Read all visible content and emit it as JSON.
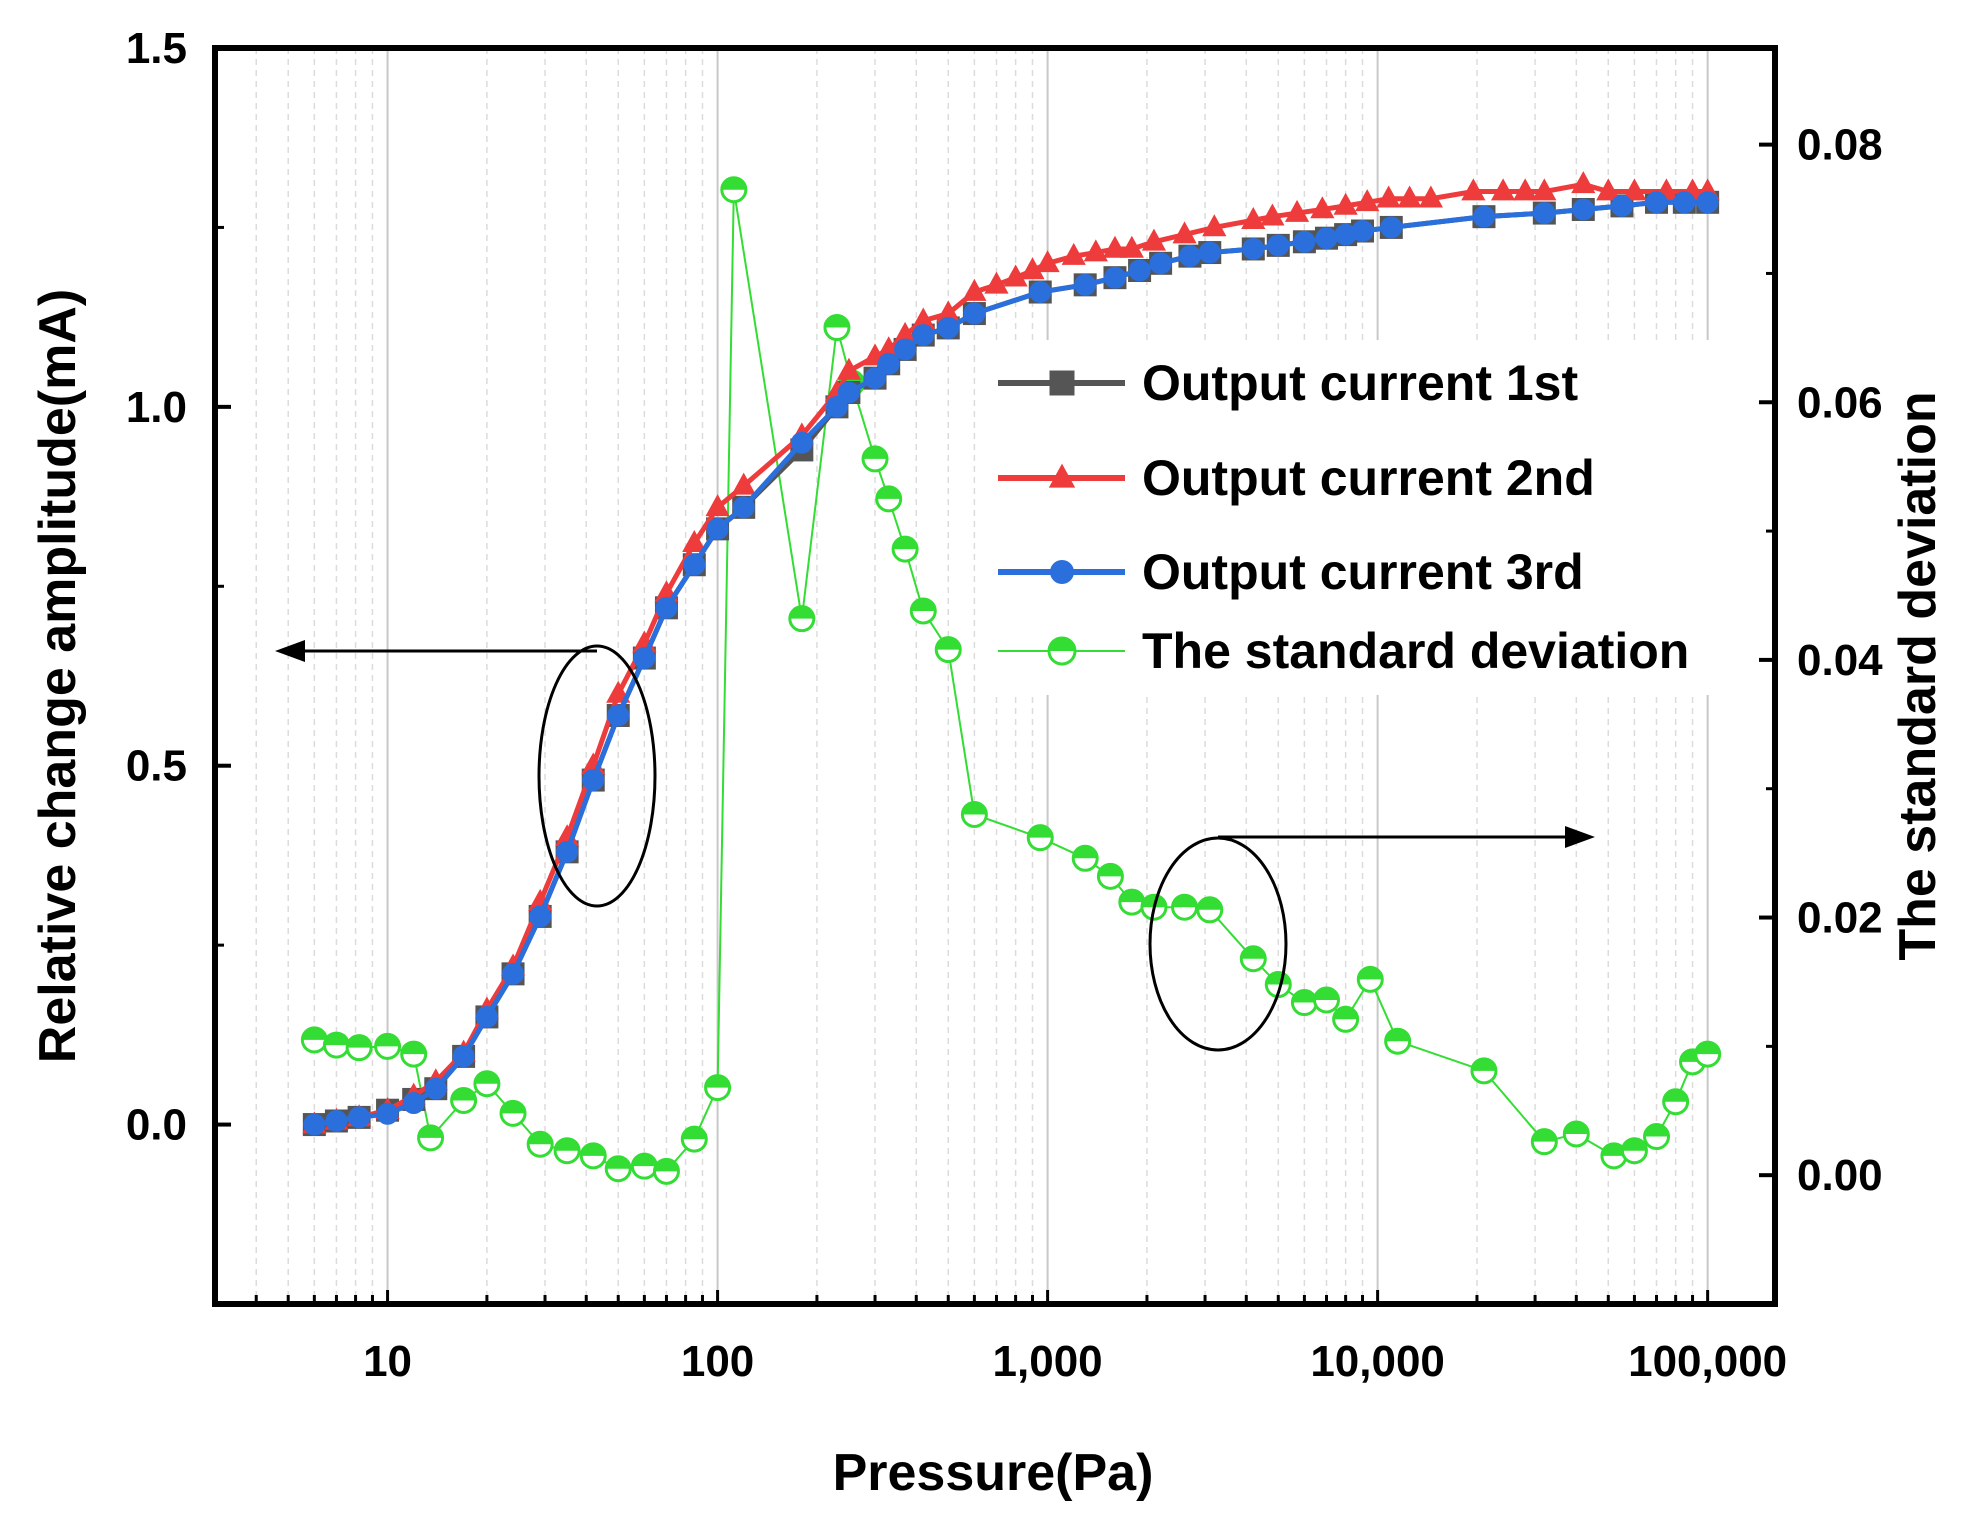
{
  "chart_data": {
    "type": "line",
    "title": "",
    "xlabel": "Pressure(Pa)",
    "ylabel": "Relative change amplitude(mA)",
    "y2label": "The standard deviation",
    "xscale": "log",
    "xlim": [
      3,
      160000
    ],
    "ylim": [
      -0.25,
      1.5
    ],
    "y2lim": [
      -0.01,
      0.0875
    ],
    "x_ticks": [
      10,
      100,
      1000,
      10000,
      100000
    ],
    "x_tick_labels": [
      "10",
      "100",
      "1,000",
      "10,000",
      "100,000"
    ],
    "y_ticks": [
      0.0,
      0.5,
      1.0,
      1.5
    ],
    "y_tick_labels": [
      "0.0",
      "0.5",
      "1.0",
      "1.5"
    ],
    "y2_ticks": [
      0.0,
      0.02,
      0.04,
      0.06,
      0.08
    ],
    "y2_tick_labels": [
      "0.00",
      "0.02",
      "0.04",
      "0.06",
      "0.08"
    ],
    "grid": true,
    "legend_position": "center-right",
    "series": [
      {
        "name": "Output current 1st",
        "axis": "left",
        "color": "#555555",
        "marker": "square",
        "x": [
          6,
          7,
          8.2,
          10,
          12,
          14,
          17,
          20,
          24,
          29,
          35,
          42,
          50,
          60,
          70,
          85,
          100,
          120,
          180,
          230,
          250,
          300,
          330,
          370,
          420,
          500,
          600,
          950,
          1300,
          1600,
          1900,
          2200,
          2700,
          3100,
          4200,
          5000,
          6000,
          7000,
          8000,
          9000,
          11000,
          21000,
          32000,
          42000,
          55000,
          70000,
          85000,
          100000
        ],
        "values": [
          0.0,
          0.005,
          0.01,
          0.02,
          0.035,
          0.05,
          0.095,
          0.15,
          0.21,
          0.29,
          0.38,
          0.48,
          0.57,
          0.65,
          0.72,
          0.78,
          0.83,
          0.86,
          0.94,
          1.0,
          1.02,
          1.04,
          1.06,
          1.08,
          1.1,
          1.11,
          1.13,
          1.16,
          1.17,
          1.18,
          1.19,
          1.2,
          1.21,
          1.215,
          1.22,
          1.225,
          1.23,
          1.235,
          1.24,
          1.245,
          1.25,
          1.265,
          1.27,
          1.275,
          1.28,
          1.285,
          1.285,
          1.285
        ]
      },
      {
        "name": "Output current 2nd",
        "axis": "left",
        "color": "#ee3b3b",
        "marker": "triangle",
        "x": [
          6,
          7,
          8.2,
          10,
          12,
          14,
          17,
          20,
          24,
          29,
          35,
          42,
          50,
          60,
          70,
          85,
          100,
          120,
          180,
          230,
          250,
          300,
          330,
          370,
          420,
          500,
          600,
          700,
          800,
          900,
          1000,
          1200,
          1400,
          1600,
          1800,
          2100,
          2600,
          3200,
          4200,
          4800,
          5700,
          6800,
          8000,
          9300,
          10800,
          12500,
          14500,
          19500,
          24000,
          28000,
          32000,
          42000,
          50000,
          60000,
          75000,
          90000,
          100000
        ],
        "values": [
          0.0,
          0.005,
          0.01,
          0.02,
          0.04,
          0.06,
          0.1,
          0.16,
          0.22,
          0.31,
          0.4,
          0.5,
          0.6,
          0.67,
          0.74,
          0.81,
          0.86,
          0.89,
          0.96,
          1.02,
          1.05,
          1.07,
          1.08,
          1.1,
          1.12,
          1.13,
          1.16,
          1.17,
          1.18,
          1.19,
          1.2,
          1.21,
          1.215,
          1.22,
          1.22,
          1.23,
          1.24,
          1.25,
          1.26,
          1.265,
          1.27,
          1.275,
          1.28,
          1.285,
          1.29,
          1.29,
          1.29,
          1.3,
          1.3,
          1.3,
          1.3,
          1.31,
          1.3,
          1.3,
          1.3,
          1.3,
          1.3
        ]
      },
      {
        "name": "Output current 3rd",
        "axis": "left",
        "color": "#2a6fdb",
        "marker": "circle",
        "x": [
          6,
          7,
          8.2,
          10,
          12,
          14,
          17,
          20,
          24,
          29,
          35,
          42,
          50,
          60,
          70,
          85,
          100,
          120,
          180,
          230,
          250,
          300,
          330,
          370,
          420,
          500,
          600,
          950,
          1300,
          1600,
          1900,
          2200,
          2700,
          3100,
          4200,
          5000,
          6000,
          7000,
          8000,
          9000,
          11000,
          21000,
          32000,
          42000,
          55000,
          70000,
          85000,
          100000
        ],
        "values": [
          0.0,
          0.005,
          0.01,
          0.015,
          0.03,
          0.05,
          0.095,
          0.15,
          0.21,
          0.29,
          0.38,
          0.48,
          0.57,
          0.65,
          0.72,
          0.78,
          0.83,
          0.86,
          0.95,
          1.0,
          1.02,
          1.04,
          1.06,
          1.08,
          1.1,
          1.11,
          1.13,
          1.16,
          1.17,
          1.18,
          1.19,
          1.2,
          1.21,
          1.215,
          1.22,
          1.225,
          1.23,
          1.235,
          1.24,
          1.245,
          1.25,
          1.265,
          1.27,
          1.275,
          1.28,
          1.285,
          1.285,
          1.285
        ]
      },
      {
        "name": "The standard deviation",
        "axis": "right",
        "color": "#33dd33",
        "marker": "half-circle",
        "x": [
          6,
          7,
          8.2,
          10,
          12,
          13.5,
          17,
          20,
          24,
          29,
          35,
          42,
          50,
          60,
          70,
          85,
          100,
          112,
          180,
          230,
          255,
          300,
          330,
          370,
          420,
          500,
          600,
          950,
          1300,
          1550,
          1800,
          2100,
          2600,
          3100,
          4200,
          5000,
          6000,
          7000,
          8000,
          9500,
          11500,
          21000,
          32000,
          40000,
          52000,
          60000,
          70000,
          80000,
          90000,
          100000
        ],
        "values": [
          0.0105,
          0.0101,
          0.0099,
          0.01,
          0.0094,
          0.0029,
          0.0058,
          0.0071,
          0.0048,
          0.0024,
          0.0019,
          0.0015,
          0.0005,
          0.0007,
          0.0003,
          0.0028,
          0.0068,
          0.0765,
          0.0432,
          0.0658,
          0.0615,
          0.0556,
          0.0525,
          0.0486,
          0.0438,
          0.0408,
          0.028,
          0.0262,
          0.0246,
          0.0232,
          0.0212,
          0.0208,
          0.0208,
          0.0206,
          0.0168,
          0.0148,
          0.0134,
          0.0136,
          0.0121,
          0.0152,
          0.0104,
          0.0081,
          0.0026,
          0.0032,
          0.0015,
          0.0019,
          0.003,
          0.0057,
          0.0088,
          0.0094
        ]
      }
    ],
    "annotations": [
      {
        "type": "ellipse-arrow",
        "target_axis": "left",
        "description": "ellipse around 1st-3rd curves with arrow pointing left"
      },
      {
        "type": "ellipse-arrow",
        "target_axis": "right",
        "description": "ellipse around standard deviation curve with arrow pointing right"
      }
    ]
  }
}
